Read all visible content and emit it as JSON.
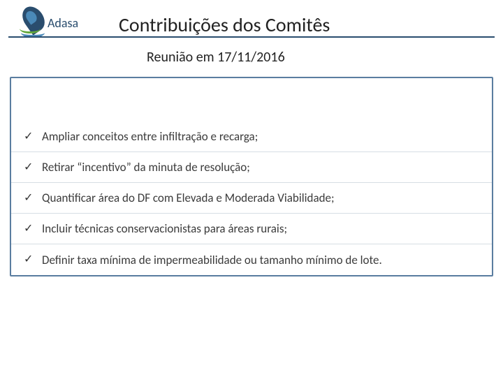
{
  "header": {
    "brand": "Adasa",
    "title": "Contribuições dos Comitês"
  },
  "subtitle": "Reunião em 17/11/2016",
  "panel": {
    "border_color": "#5a7da0",
    "items": [
      "Ampliar conceitos entre infiltração e recarga;",
      "Retirar “incentivo” da minuta de resolução;",
      "Quantificar área do DF com Elevada e Moderada Viabilidade;",
      "Incluir técnicas conservacionistas para áreas rurais;",
      "Definir taxa mínima de impermeabilidade ou tamanho mínimo de lote."
    ]
  },
  "colors": {
    "rule": "#2a4d6e",
    "text": "#3b3b3b",
    "brand_dark": "#2a4d6e",
    "brand_blue": "#4a89b8",
    "brand_green": "#63a83b",
    "divider": "#d6dde4"
  }
}
